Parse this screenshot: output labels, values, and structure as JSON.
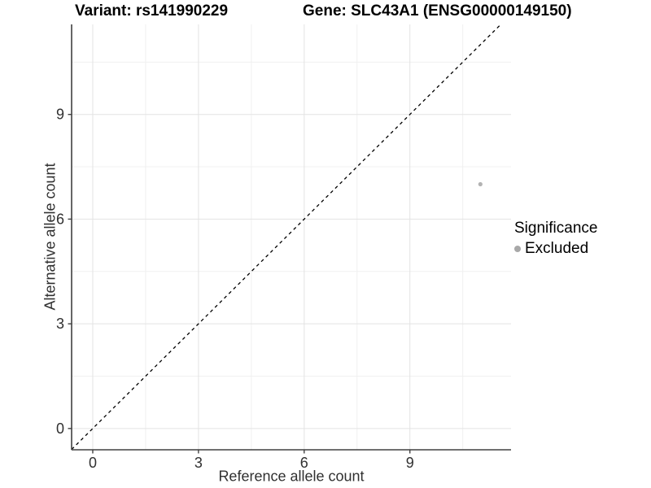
{
  "titles": {
    "left": "Variant: rs141990229",
    "right": "Gene: SLC43A1 (ENSG00000149150)"
  },
  "chart_data": {
    "type": "scatter",
    "title": "Variant: rs141990229    Gene: SLC43A1 (ENSG00000149150)",
    "xlabel": "Reference allele count",
    "ylabel": "Alternative allele count",
    "xlim": [
      -0.6,
      11.87
    ],
    "ylim": [
      -0.61,
      11.58
    ],
    "x_major_ticks": [
      0,
      3,
      6,
      9
    ],
    "y_major_ticks": [
      0,
      3,
      6,
      9
    ],
    "x_minor_gridlines": [
      1.5,
      4.5,
      7.5,
      10.5
    ],
    "y_minor_gridlines": [
      1.5,
      4.5,
      7.5,
      10.5
    ],
    "grid": true,
    "reference_line": {
      "type": "identity",
      "equation": "y = x",
      "style": "dashed",
      "color": "#000000"
    },
    "series": [
      {
        "name": "Excluded",
        "color": "#b3b3b3",
        "points": [
          {
            "x": 11,
            "y": 7
          }
        ]
      }
    ],
    "legend": {
      "title": "Significance",
      "position": "right",
      "entries": [
        {
          "label": "Excluded",
          "color": "#a8a8a8",
          "marker": "circle-icon"
        }
      ]
    }
  },
  "colors": {
    "background": "#ffffff",
    "grid_major": "#e3e3e3",
    "grid_minor": "#f0f0f0",
    "axis_line": "#404040",
    "axis_text": "#303030",
    "point": "#b3b3b3",
    "reference_line": "#000000"
  }
}
